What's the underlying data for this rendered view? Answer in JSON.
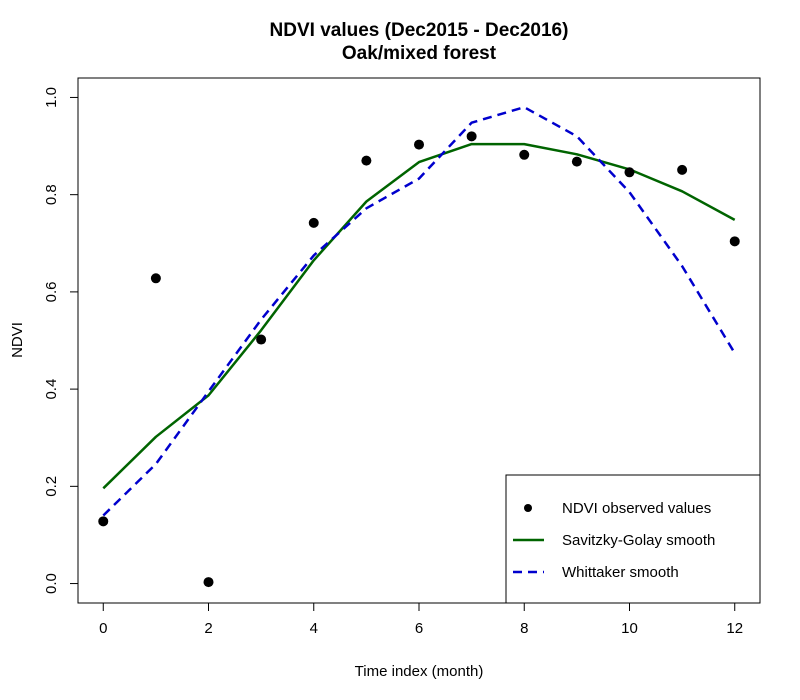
{
  "chart_data": {
    "type": "line",
    "title": "NDVI values (Dec2015 - Dec2016)",
    "subtitle": "Oak/mixed forest",
    "xlabel": "Time index (month)",
    "ylabel": "NDVI",
    "xlim": [
      -0.48,
      12.48
    ],
    "ylim": [
      -0.04,
      1.04
    ],
    "x_ticks": [
      0,
      2,
      4,
      6,
      8,
      10,
      12
    ],
    "y_ticks": [
      0.0,
      0.2,
      0.4,
      0.6,
      0.8,
      1.0
    ],
    "x_tick_labels": [
      "0",
      "2",
      "4",
      "6",
      "8",
      "10",
      "12"
    ],
    "y_tick_labels": [
      "0.0",
      "0.2",
      "0.4",
      "0.6",
      "0.8",
      "1.0"
    ],
    "legend_position": "bottom-right",
    "grid": false,
    "x": [
      0,
      1,
      2,
      3,
      4,
      5,
      6,
      7,
      8,
      9,
      10,
      11,
      12
    ],
    "series": [
      {
        "name": "NDVI observed values",
        "style": "points",
        "color": "#000000",
        "values": [
          0.128,
          0.628,
          0.003,
          0.502,
          0.742,
          0.87,
          0.903,
          0.92,
          0.882,
          0.868,
          0.846,
          0.851,
          0.704
        ]
      },
      {
        "name": "Savitzky-Golay smooth",
        "style": "solid",
        "color": "#006400",
        "values": [
          0.196,
          0.302,
          0.387,
          0.521,
          0.665,
          0.786,
          0.867,
          0.904,
          0.904,
          0.883,
          0.852,
          0.807,
          0.748
        ]
      },
      {
        "name": "Whittaker smooth",
        "style": "dashed",
        "color": "#0000CD",
        "values": [
          0.14,
          0.246,
          0.395,
          0.543,
          0.675,
          0.772,
          0.833,
          0.948,
          0.98,
          0.92,
          0.805,
          0.653,
          0.474
        ]
      }
    ]
  }
}
